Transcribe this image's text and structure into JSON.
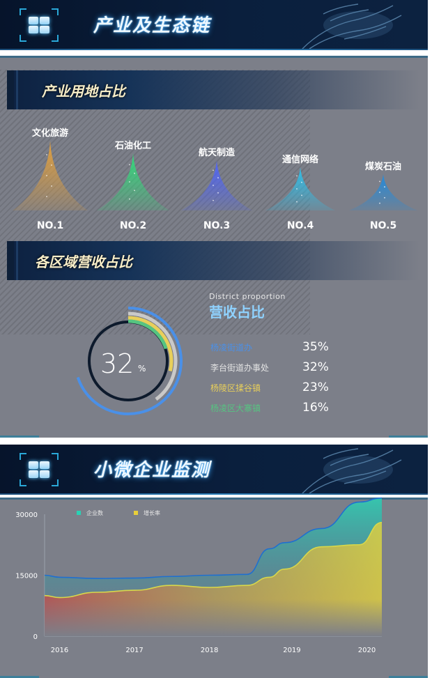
{
  "top_banner": {
    "title": "产业及生态链"
  },
  "industry_section": {
    "title": "产业用地占比",
    "items": [
      {
        "label": "文化旅游",
        "rank": "NO.1",
        "color": "#e7a23a",
        "level": 1.0
      },
      {
        "label": "石油化工",
        "rank": "NO.2",
        "color": "#2ee07a",
        "level": 0.82
      },
      {
        "label": "航天制造",
        "rank": "NO.3",
        "color": "#4d63ff",
        "level": 0.72
      },
      {
        "label": "通信网络",
        "rank": "NO.4",
        "color": "#2ac4f0",
        "level": 0.62
      },
      {
        "label": "煤炭石油",
        "rank": "NO.5",
        "color": "#1e8ce0",
        "level": 0.52
      }
    ]
  },
  "revenue_section": {
    "title": "各区域营收占比",
    "subtitle": "District proportion",
    "heading": "营收占比",
    "ring_value": "32",
    "ring_unit": "%",
    "legend": [
      {
        "name": "杨凌街道办",
        "value": "35%",
        "color": "#4a90e8",
        "fraction": 0.35
      },
      {
        "name": "李台街道办事处",
        "value": "32%",
        "color": "#c9c9c9",
        "fraction": 0.32
      },
      {
        "name": "杨陵区揉谷镇",
        "value": "23%",
        "color": "#e8cf5a",
        "fraction": 0.23
      },
      {
        "name": "杨凌区大寨镇",
        "value": "16%",
        "color": "#56c481",
        "fraction": 0.16
      }
    ]
  },
  "bottom_banner": {
    "title": "小微企业监测"
  },
  "chart_data": {
    "type": "area",
    "x": [
      2015.8,
      2016,
      2016.5,
      2017,
      2017.5,
      2018,
      2018.5,
      2018.8,
      2019,
      2019.5,
      2020,
      2020.3
    ],
    "x_ticks": [
      "2016",
      "2017",
      "2018",
      "2019",
      "2020"
    ],
    "y_ticks": [
      "30000",
      "15000",
      "0"
    ],
    "ylim": [
      0,
      30000
    ],
    "series": [
      {
        "name": "企业数",
        "color": "#2ad1b4",
        "values": [
          15000,
          14500,
          14200,
          14300,
          14700,
          15000,
          15200,
          21500,
          23000,
          26500,
          33000,
          34000
        ]
      },
      {
        "name": "增长率",
        "color": "#e8cf3a",
        "values": [
          10000,
          9500,
          10800,
          11300,
          12500,
          12000,
          12500,
          14500,
          16500,
          22000,
          22500,
          28000
        ]
      }
    ]
  }
}
